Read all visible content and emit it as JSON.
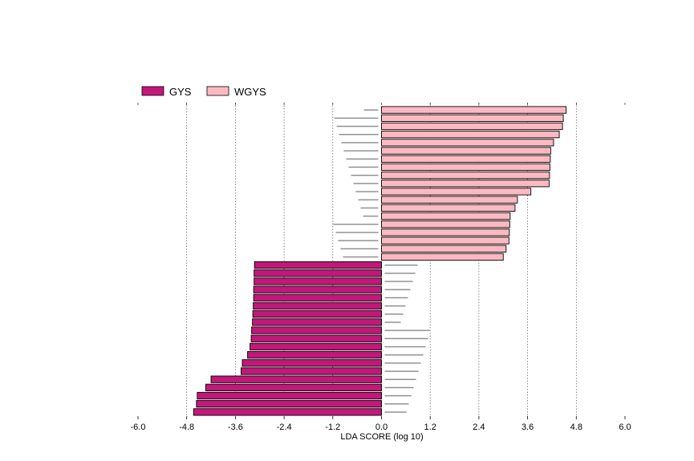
{
  "chart_data": {
    "type": "bar",
    "orientation": "horizontal",
    "xlabel": "LDA SCORE (log 10)",
    "xlim": [
      -6.0,
      6.0
    ],
    "xticks": [
      "-6.0",
      "-4.8",
      "-3.6",
      "-2.4",
      "-1.2",
      "0.0",
      "1.2",
      "2.4",
      "3.6",
      "4.8",
      "6.0"
    ],
    "grid": "vertical dotted",
    "legend_position": "top-left",
    "series": [
      {
        "name": "GYS",
        "color": "#c2187a"
      },
      {
        "name": "WGYS",
        "color": "#fdb9c2"
      }
    ],
    "bars": [
      {
        "group": "WGYS",
        "value": 4.55
      },
      {
        "group": "WGYS",
        "value": 4.48
      },
      {
        "group": "WGYS",
        "value": 4.46
      },
      {
        "group": "WGYS",
        "value": 4.38
      },
      {
        "group": "WGYS",
        "value": 4.24
      },
      {
        "group": "WGYS",
        "value": 4.17
      },
      {
        "group": "WGYS",
        "value": 4.16
      },
      {
        "group": "WGYS",
        "value": 4.15
      },
      {
        "group": "WGYS",
        "value": 4.14
      },
      {
        "group": "WGYS",
        "value": 4.13
      },
      {
        "group": "WGYS",
        "value": 3.68
      },
      {
        "group": "WGYS",
        "value": 3.35
      },
      {
        "group": "WGYS",
        "value": 3.29
      },
      {
        "group": "WGYS",
        "value": 3.17
      },
      {
        "group": "WGYS",
        "value": 3.16
      },
      {
        "group": "WGYS",
        "value": 3.15
      },
      {
        "group": "WGYS",
        "value": 3.14
      },
      {
        "group": "WGYS",
        "value": 3.07
      },
      {
        "group": "WGYS",
        "value": 3.0
      },
      {
        "group": "GYS",
        "value": -3.13
      },
      {
        "group": "GYS",
        "value": -3.14
      },
      {
        "group": "GYS",
        "value": -3.14
      },
      {
        "group": "GYS",
        "value": -3.15
      },
      {
        "group": "GYS",
        "value": -3.15
      },
      {
        "group": "GYS",
        "value": -3.16
      },
      {
        "group": "GYS",
        "value": -3.17
      },
      {
        "group": "GYS",
        "value": -3.18
      },
      {
        "group": "GYS",
        "value": -3.2
      },
      {
        "group": "GYS",
        "value": -3.21
      },
      {
        "group": "GYS",
        "value": -3.24
      },
      {
        "group": "GYS",
        "value": -3.3
      },
      {
        "group": "GYS",
        "value": -3.43
      },
      {
        "group": "GYS",
        "value": -3.46
      },
      {
        "group": "GYS",
        "value": -4.2
      },
      {
        "group": "GYS",
        "value": -4.33
      },
      {
        "group": "GYS",
        "value": -4.54
      },
      {
        "group": "GYS",
        "value": -4.56
      },
      {
        "group": "GYS",
        "value": -4.63
      }
    ]
  }
}
